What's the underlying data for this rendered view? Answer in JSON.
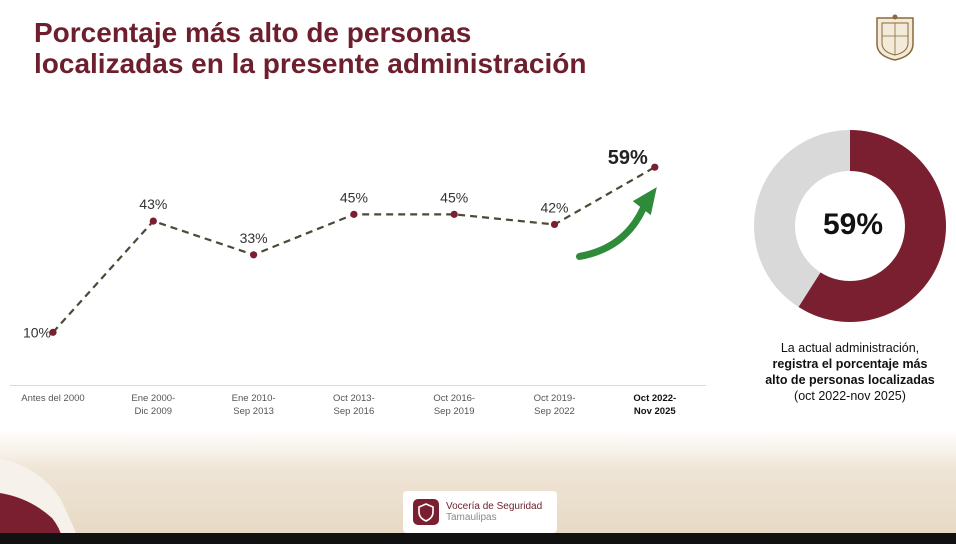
{
  "header": {
    "title_line1": "Porcentaje más alto de personas",
    "title_line2": "localizadas en la presente administración"
  },
  "colors": {
    "brand": "#6d1f2e",
    "line": "#4a4a38",
    "marker": "#7a1f30",
    "arrow": "#2e8b3a",
    "donut_rest": "#d9d9d9"
  },
  "icons": {
    "crest": "tamaulipas-crest-icon",
    "arrow": "green-up-arrow-icon",
    "badge": "shield-icon"
  },
  "chart_data": [
    {
      "type": "line",
      "categories": [
        "Antes del 2000",
        "Ene 2000-Dic 2009",
        "Ene 2010-Sep 2013",
        "Oct 2013-Sep 2016",
        "Oct 2016-Sep 2019",
        "Oct 2019-Sep 2022",
        "Oct 2022-Nov 2025"
      ],
      "category_lines": [
        [
          "Antes del 2000"
        ],
        [
          "Ene 2000-",
          "Dic 2009"
        ],
        [
          "Ene 2010-",
          "Sep 2013"
        ],
        [
          "Oct 2013-",
          "Sep 2016"
        ],
        [
          "Oct 2016-",
          "Sep 2019"
        ],
        [
          "Oct 2019-",
          "Sep 2022"
        ],
        [
          "Oct 2022-",
          "Nov 2025"
        ]
      ],
      "highlight_category": "Oct 2022-Nov 2025",
      "values": [
        10,
        43,
        33,
        45,
        45,
        42,
        59
      ],
      "value_labels": [
        "10%",
        "43%",
        "33%",
        "45%",
        "45%",
        "42%",
        "59%"
      ],
      "ylim": [
        0,
        65
      ],
      "grid": false,
      "line_style": "dashed"
    },
    {
      "type": "pie",
      "donut": true,
      "values": [
        59,
        41
      ],
      "center_label": "59%"
    }
  ],
  "donut": {
    "label": "59%"
  },
  "description": {
    "line1": "La actual administración,",
    "line2": "registra el porcentaje más",
    "line3": "alto de personas localizadas",
    "line4": "(oct 2022-nov 2025)"
  },
  "footer": {
    "line1": "Vocería de Seguridad",
    "line2": "Tamaulipas"
  }
}
